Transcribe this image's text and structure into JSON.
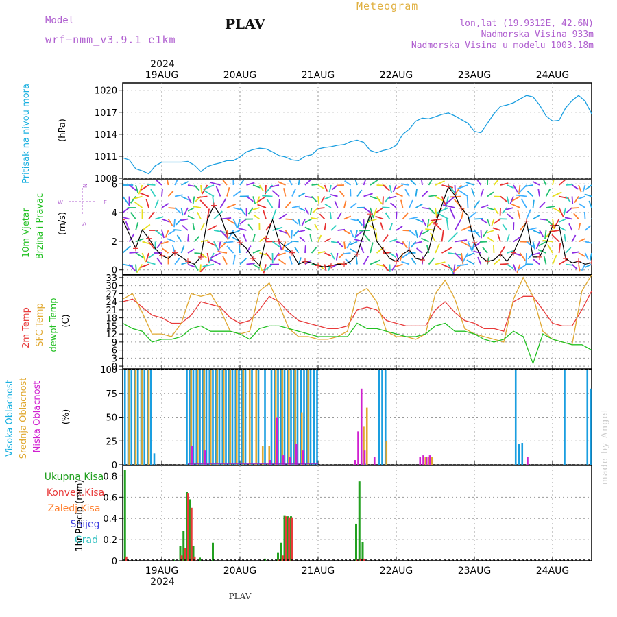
{
  "header": {
    "model_label": "Model",
    "model_name": "wrf−nmm_v3.9.1  e1km",
    "station": "PLAV",
    "meteogram": "Meteogram",
    "lonlat": "lon,lat (19.9312E, 42.6N)",
    "elev": "Nadmorska Visina 933m",
    "model_elev": "Nadmorska Visina u modelu 1003.18m",
    "year": "2024",
    "footer_station": "PLAV",
    "watermark": "made by Angel"
  },
  "colors": {
    "pressure": "#1a9ee0",
    "t2m": "#e83a3a",
    "sfc": "#e0a830",
    "dewpt": "#22c022",
    "high_cloud": "#1a9ee0",
    "mid_cloud": "#e0a830",
    "low_cloud": "#d020d0",
    "total": "#22a020",
    "convective": "#e83a3a"
  },
  "chart_data": [
    {
      "type": "line",
      "panel": "pressure",
      "ylabel_1": "Pritisak na nivou mora",
      "ylabel_2": "(hPa)",
      "x_labels": [
        "19AUG",
        "20AUG",
        "21AUG",
        "22AUG",
        "23AUG",
        "24AUG"
      ],
      "x_range_hours": [
        0,
        144
      ],
      "ylim": [
        1008,
        1021
      ],
      "yticks": [
        1008,
        1011,
        1014,
        1017,
        1020
      ],
      "series": [
        {
          "name": "",
          "x": [
            0,
            2,
            4,
            6,
            8,
            10,
            12,
            14,
            16,
            18,
            20,
            22,
            24,
            26,
            28,
            30,
            32,
            34,
            36,
            38,
            40,
            42,
            44,
            46,
            48,
            50,
            52,
            54,
            56,
            58,
            60,
            62,
            64,
            66,
            68,
            70,
            72,
            74,
            76,
            78,
            80,
            82,
            84,
            86,
            88,
            90,
            92,
            94,
            96,
            98,
            100,
            102,
            104,
            106,
            108,
            110,
            112,
            114,
            116,
            118,
            120,
            122,
            124,
            126,
            128,
            130,
            132,
            134,
            136,
            138,
            140,
            142,
            144
          ],
          "values": [
            1010.8,
            1010.5,
            1009.3,
            1009,
            1008.6,
            1009.7,
            1010.2,
            1010.2,
            1010.2,
            1010.2,
            1010.3,
            1009.8,
            1008.9,
            1009.6,
            1009.9,
            1010.1,
            1010.4,
            1010.4,
            1010.9,
            1011.6,
            1011.9,
            1012.1,
            1012,
            1011.6,
            1011.1,
            1010.9,
            1010.5,
            1010.4,
            1011,
            1011.2,
            1012,
            1012.2,
            1012.3,
            1012.5,
            1012.6,
            1013,
            1013.2,
            1012.9,
            1011.8,
            1011.5,
            1011.8,
            1012,
            1012.5,
            1014,
            1014.7,
            1015.8,
            1016.2,
            1016.1,
            1016.4,
            1016.7,
            1016.9,
            1016.5,
            1016,
            1015.5,
            1014.4,
            1014.2,
            1015.5,
            1016.8,
            1017.8,
            1018,
            1018.3,
            1018.8,
            1019.3,
            1019.1,
            1018,
            1016.5,
            1015.8,
            1015.9,
            1017.6,
            1018.6,
            1019.3,
            1018.5,
            1016.8
          ],
          "color": "#1a9ee0"
        }
      ]
    },
    {
      "type": "line",
      "panel": "wind",
      "ylabel_1": "10m Vjetar",
      "ylabel_2": "Brzina i Pravac",
      "ylabel_3": "(m/s)",
      "compass_labels": {
        "north": "N",
        "west": "W",
        "east": "E",
        "south": "S"
      },
      "ylim": [
        -0.3,
        6.3
      ],
      "yticks": [
        0,
        2,
        4,
        6
      ],
      "series": [
        {
          "name": "",
          "x": [
            0,
            2,
            4,
            6,
            8,
            10,
            12,
            14,
            16,
            18,
            20,
            22,
            24,
            26,
            28,
            30,
            32,
            34,
            36,
            38,
            40,
            42,
            44,
            46,
            48,
            50,
            52,
            54,
            56,
            58,
            60,
            62,
            64,
            66,
            68,
            70,
            72,
            74,
            76,
            78,
            80,
            82,
            84,
            86,
            88,
            90,
            92,
            94,
            96,
            98,
            100,
            102,
            104,
            106,
            108,
            110,
            112,
            114,
            116,
            118,
            120,
            122,
            124,
            126,
            128,
            130,
            132,
            134,
            136,
            138,
            140,
            142,
            144
          ],
          "values": [
            3.5,
            2.5,
            1.5,
            2.8,
            2.2,
            1.5,
            1,
            0.8,
            1.2,
            0.9,
            0.6,
            0.4,
            0.9,
            3.5,
            4.5,
            3.8,
            2.5,
            2.6,
            1.9,
            1.5,
            0.8,
            0.3,
            2.2,
            3.5,
            2,
            1.6,
            1.2,
            0.4,
            0.6,
            0.5,
            0.3,
            0.2,
            0.3,
            0.4,
            0.4,
            0.6,
            1.1,
            2.5,
            3.9,
            2,
            1.4,
            0.8,
            0.6,
            1.1,
            1.4,
            0.8,
            0.7,
            1.4,
            3.2,
            4.5,
            5.8,
            5.2,
            4.3,
            3.8,
            1.9,
            0.9,
            0.6,
            0.7,
            1.1,
            0.6,
            1.2,
            2.2,
            3.4,
            0.9,
            0.9,
            1.8,
            3.1,
            3.1,
            0.8,
            0.5,
            0.6,
            0.4,
            0.5
          ],
          "color": "#000000"
        }
      ]
    },
    {
      "type": "line",
      "panel": "temperature",
      "ylabel_1": "2m Temp",
      "ylabel_2": "SFC Temp",
      "ylabel_3": "dewpt Temp",
      "ylabel_4": "(C)",
      "ylim": [
        -1,
        34
      ],
      "yticks": [
        0,
        3,
        6,
        9,
        12,
        15,
        18,
        21,
        24,
        27,
        30,
        33
      ],
      "series": [
        {
          "name": "2m Temp",
          "color": "#e83a3a",
          "x": [
            0,
            3,
            6,
            9,
            12,
            15,
            18,
            21,
            24,
            27,
            30,
            33,
            36,
            39,
            42,
            45,
            48,
            51,
            54,
            57,
            60,
            63,
            66,
            69,
            72,
            75,
            78,
            81,
            84,
            87,
            90,
            93,
            96,
            99,
            102,
            105,
            108,
            111,
            114,
            117,
            120,
            123,
            126,
            129,
            132,
            135,
            138,
            141,
            144
          ],
          "values": [
            24,
            25,
            22,
            19,
            18,
            16,
            16,
            19,
            24,
            23,
            22,
            18,
            16,
            17,
            21,
            26,
            24,
            20,
            17,
            16,
            15,
            14,
            14,
            15,
            21,
            22,
            21,
            17,
            16,
            15,
            15,
            15,
            21,
            24,
            20,
            17,
            16,
            14,
            14,
            13,
            24,
            26,
            26,
            21,
            16,
            15,
            15,
            21,
            28
          ]
        },
        {
          "name": "SFC Temp",
          "color": "#e0a830",
          "x": [
            0,
            3,
            6,
            9,
            12,
            15,
            18,
            21,
            24,
            27,
            30,
            33,
            36,
            39,
            42,
            45,
            48,
            51,
            54,
            57,
            60,
            63,
            66,
            69,
            72,
            75,
            78,
            81,
            84,
            87,
            90,
            93,
            96,
            99,
            102,
            105,
            108,
            111,
            114,
            117,
            120,
            123,
            126,
            129,
            132,
            135,
            138,
            141,
            144
          ],
          "values": [
            25,
            27,
            20,
            12,
            12,
            11,
            16,
            27,
            26,
            27,
            21,
            13,
            12,
            13,
            28,
            31,
            23,
            14,
            11,
            11,
            10,
            10,
            11,
            13,
            27,
            29,
            24,
            13,
            11,
            11,
            10,
            12,
            27,
            32,
            25,
            14,
            12,
            11,
            10,
            9,
            25,
            33,
            26,
            13,
            10,
            9,
            8,
            28,
            34
          ]
        },
        {
          "name": "dewpt Temp",
          "color": "#22c022",
          "x": [
            0,
            3,
            6,
            9,
            12,
            15,
            18,
            21,
            24,
            27,
            30,
            33,
            36,
            39,
            42,
            45,
            48,
            51,
            54,
            57,
            60,
            63,
            66,
            69,
            72,
            75,
            78,
            81,
            84,
            87,
            90,
            93,
            96,
            99,
            102,
            105,
            108,
            111,
            114,
            117,
            120,
            123,
            126,
            129,
            132,
            135,
            138,
            141,
            144
          ],
          "values": [
            16,
            14,
            13,
            9,
            10,
            10,
            11,
            14,
            15,
            13,
            13,
            13,
            12,
            10,
            14,
            15,
            15,
            14,
            13,
            12,
            11,
            11,
            11,
            11,
            16,
            14,
            14,
            13,
            12,
            11,
            11,
            12,
            15,
            16,
            13,
            13,
            12,
            10,
            9,
            10,
            13,
            11,
            1,
            12,
            10,
            9,
            8,
            8,
            6
          ]
        }
      ]
    },
    {
      "type": "bar",
      "panel": "cloud",
      "ylabel_1": "Visoka Oblacnost",
      "ylabel_2": "Srednja Oblacnost",
      "ylabel_3": "Niska Oblacnost",
      "ylabel_4": "(%)",
      "ylim": [
        0,
        100
      ],
      "yticks": [
        0,
        25,
        50,
        75,
        100
      ],
      "series": [
        {
          "name": "high",
          "color": "#1a9ee0",
          "x": [
            1,
            2,
            3,
            4,
            5,
            6,
            7,
            8,
            9,
            10,
            18,
            19,
            20,
            21,
            22,
            23,
            24,
            25,
            26,
            27,
            28,
            29,
            30,
            31,
            32,
            33,
            34,
            35,
            36,
            37,
            38,
            40,
            42,
            44,
            46,
            47,
            48,
            49,
            50,
            51,
            52,
            53,
            54,
            55,
            56,
            57,
            58,
            59,
            60,
            73,
            74,
            75,
            79,
            80,
            81,
            91,
            92,
            93,
            121,
            122,
            123,
            125,
            134,
            136,
            137,
            143,
            144
          ],
          "values": [
            100,
            100,
            100,
            100,
            100,
            100,
            100,
            100,
            100,
            12,
            0,
            0,
            100,
            100,
            100,
            100,
            100,
            100,
            100,
            100,
            100,
            100,
            100,
            100,
            100,
            100,
            100,
            100,
            100,
            100,
            100,
            100,
            100,
            100,
            100,
            100,
            100,
            100,
            100,
            100,
            100,
            100,
            100,
            100,
            100,
            100,
            100,
            100,
            100,
            0,
            1,
            1,
            100,
            100,
            100,
            0,
            0,
            0,
            100,
            22,
            23,
            0,
            0,
            100,
            0,
            100,
            80
          ]
        },
        {
          "name": "mid",
          "color": "#e0a830",
          "x": [
            2,
            4,
            6,
            8,
            21,
            23,
            25,
            27,
            29,
            31,
            33,
            35,
            37,
            39,
            41,
            43,
            45,
            47,
            49,
            51,
            53,
            55,
            57,
            74,
            75,
            81,
            93,
            94,
            95
          ],
          "values": [
            100,
            100,
            100,
            100,
            100,
            100,
            100,
            100,
            100,
            100,
            100,
            100,
            100,
            100,
            100,
            20,
            20,
            100,
            100,
            100,
            100,
            55,
            100,
            40,
            60,
            25,
            8,
            8,
            8
          ]
        },
        {
          "name": "low",
          "color": "#d020d0",
          "x": [
            21,
            25,
            45,
            47,
            49,
            51,
            53,
            55,
            71,
            72,
            73,
            74,
            77,
            91,
            92,
            93,
            94,
            124
          ],
          "values": [
            20,
            15,
            5,
            50,
            10,
            8,
            22,
            15,
            5,
            35,
            80,
            15,
            8,
            8,
            10,
            8,
            10,
            8
          ]
        }
      ]
    },
    {
      "type": "bar",
      "panel": "precip",
      "legend": [
        "Ukupna  Kisa",
        "Konvek.Kisa",
        "Zaledj.Kisa",
        "Snijeg",
        "Grad"
      ],
      "ylabel_1": "1hr Precip (mm)",
      "ylim": [
        0,
        0.9
      ],
      "yticks": [
        0,
        0.2,
        0.4,
        0.6,
        0.8
      ],
      "series": [
        {
          "name": "Ukupna  Kisa",
          "color": "#22a020",
          "x": [
            1,
            16,
            18,
            19,
            20,
            21,
            22,
            24,
            28,
            44,
            48,
            49,
            50,
            51,
            52,
            72,
            73,
            74
          ],
          "values": [
            0.86,
            0.01,
            0.14,
            0.28,
            0.65,
            0.58,
            0.14,
            0.03,
            0.17,
            0.02,
            0.08,
            0.17,
            0.43,
            0.42,
            0.42,
            0.35,
            0.75,
            0.18
          ]
        },
        {
          "name": "Konvek.Kisa",
          "color": "#e83a3a",
          "x": [
            1,
            18,
            19,
            20,
            21,
            22,
            48,
            49,
            50,
            51,
            52,
            72,
            73,
            74
          ],
          "values": [
            0.04,
            0.05,
            0.12,
            0.64,
            0.5,
            0.04,
            0.01,
            0.05,
            0.42,
            0.41,
            0.41,
            0.01,
            0.02,
            0.02
          ]
        }
      ]
    }
  ]
}
